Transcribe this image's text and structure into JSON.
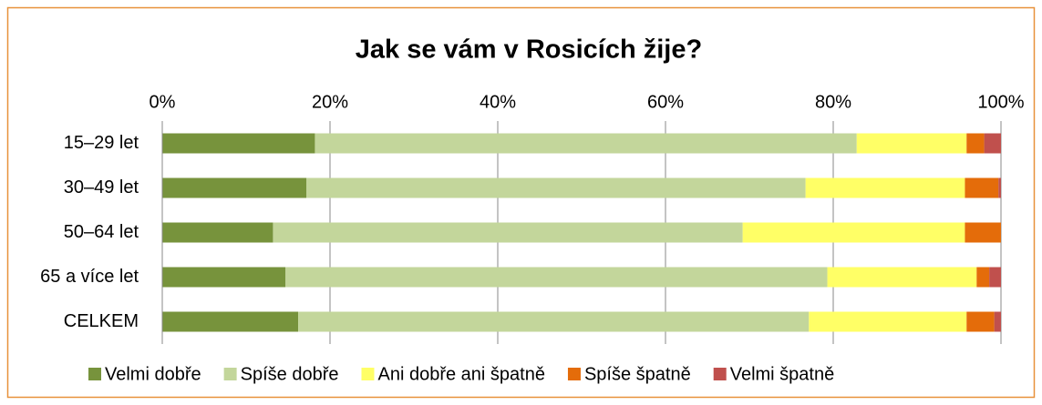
{
  "chart_data": {
    "type": "stacked_barh",
    "title": "Jak se vám v Rosicích žije?",
    "categories": [
      "15–29 let",
      "30–49 let",
      "50–64 let",
      "65 a více let",
      "CELKEM"
    ],
    "series": [
      {
        "name": "Velmi dobře",
        "color": "#77933c",
        "values": [
          18.2,
          17.2,
          13.2,
          14.7,
          16.2
        ]
      },
      {
        "name": "Spíše dobře",
        "color": "#c3d69b",
        "values": [
          64.6,
          59.5,
          56.0,
          64.6,
          60.9
        ]
      },
      {
        "name": "Ani dobře ani špatně",
        "color": "#ffff66",
        "values": [
          13.1,
          19.0,
          26.5,
          17.8,
          18.8
        ]
      },
      {
        "name": "Spíše špatně",
        "color": "#e46c0a",
        "values": [
          2.1,
          4.0,
          4.3,
          1.5,
          3.3
        ]
      },
      {
        "name": "Velmi špatně",
        "color": "#c0504d",
        "values": [
          2.0,
          0.3,
          0,
          1.4,
          0.8
        ]
      }
    ],
    "xlim": [
      0,
      100
    ],
    "xticks": [
      {
        "value": 0,
        "label": "0%"
      },
      {
        "value": 20,
        "label": "20%"
      },
      {
        "value": 40,
        "label": "40%"
      },
      {
        "value": 60,
        "label": "60%"
      },
      {
        "value": 80,
        "label": "80%"
      },
      {
        "value": 100,
        "label": "100%"
      }
    ],
    "grid": true,
    "legend": "bottom"
  }
}
